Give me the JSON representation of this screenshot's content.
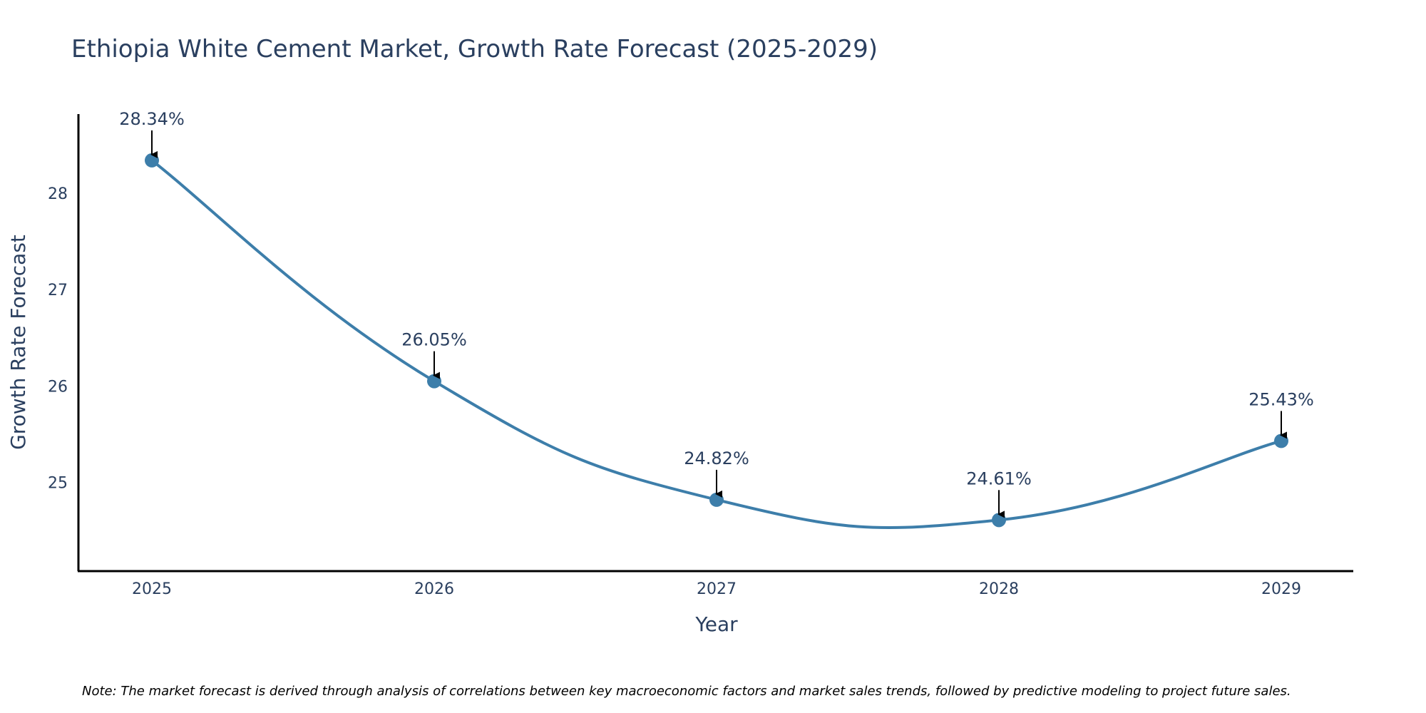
{
  "chart_data": {
    "type": "line",
    "title": "Ethiopia White Cement Market, Growth Rate Forecast (2025-2029)",
    "xlabel": "Year",
    "ylabel": "Growth Rate Forecast",
    "x": [
      "2025",
      "2026",
      "2027",
      "2028",
      "2029"
    ],
    "values": [
      28.34,
      26.05,
      24.82,
      24.61,
      25.43
    ],
    "data_labels": [
      "28.34%",
      "26.05%",
      "24.82%",
      "24.61%",
      "25.43%"
    ],
    "yticks": [
      25,
      26,
      27,
      28
    ],
    "ytick_labels": [
      "25",
      "26",
      "27",
      "28"
    ],
    "ylim": [
      24.08,
      28.82
    ],
    "grid": false,
    "line_color": "#3d7eaa",
    "marker_color": "#3d7eaa",
    "arrow_color": "#000000",
    "note": "Note: The market forecast is derived through analysis of correlations between key macroeconomic factors and market sales trends, followed by predictive modeling to project future sales."
  }
}
